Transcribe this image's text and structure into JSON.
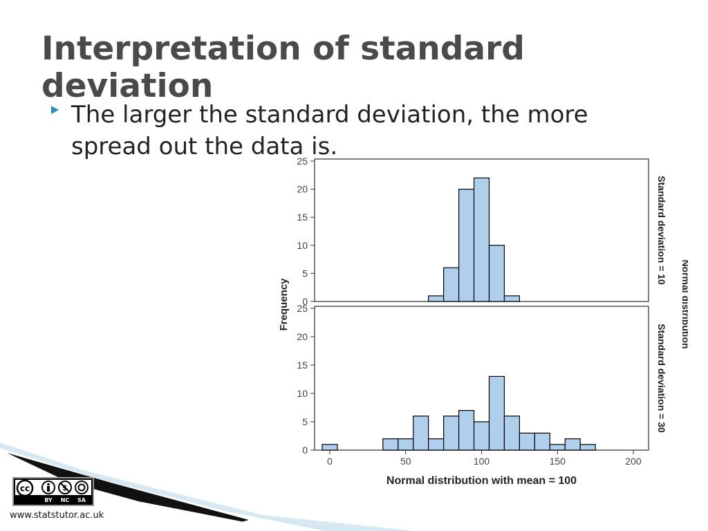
{
  "slide": {
    "title": "Interpretation of standard deviation",
    "bullet": "The larger the standard deviation, the more spread out the data is.",
    "website": "www.statstutor.ac.uk",
    "license": {
      "icons": [
        "cc-icon",
        "attribution-icon",
        "noncommercial-icon",
        "sharealike-icon"
      ],
      "labels": [
        "BY",
        "NC",
        "SA"
      ]
    }
  },
  "colors": {
    "bar_fill": "#b0cfec",
    "bar_stroke": "#000000",
    "title": "#4a4a4a",
    "bullet": "#2e8fb6"
  },
  "chart_data": {
    "type": "bar",
    "xlabel": "Normal distribution with mean = 100",
    "ylabel": "Frequency",
    "facet_label": "Normal distribution",
    "xlim": [
      -10,
      210
    ],
    "ylim": [
      0,
      25
    ],
    "xticks": [
      0,
      50,
      100,
      150,
      200
    ],
    "yticks": [
      0,
      5,
      10,
      15,
      20,
      25
    ],
    "grid": false,
    "bin_width": 10,
    "panels": [
      {
        "name": "Standard deviation = 10",
        "bins": [
          {
            "x": 70,
            "y": 1
          },
          {
            "x": 80,
            "y": 6
          },
          {
            "x": 90,
            "y": 20
          },
          {
            "x": 100,
            "y": 22
          },
          {
            "x": 110,
            "y": 10
          },
          {
            "x": 120,
            "y": 1
          }
        ]
      },
      {
        "name": "Standard deviation = 30",
        "bins": [
          {
            "x": 0,
            "y": 1
          },
          {
            "x": 40,
            "y": 2
          },
          {
            "x": 50,
            "y": 2
          },
          {
            "x": 60,
            "y": 6
          },
          {
            "x": 70,
            "y": 2
          },
          {
            "x": 80,
            "y": 6
          },
          {
            "x": 90,
            "y": 7
          },
          {
            "x": 100,
            "y": 5
          },
          {
            "x": 110,
            "y": 13
          },
          {
            "x": 120,
            "y": 6
          },
          {
            "x": 130,
            "y": 3
          },
          {
            "x": 140,
            "y": 3
          },
          {
            "x": 150,
            "y": 1
          },
          {
            "x": 160,
            "y": 2
          },
          {
            "x": 170,
            "y": 1
          }
        ]
      }
    ]
  }
}
